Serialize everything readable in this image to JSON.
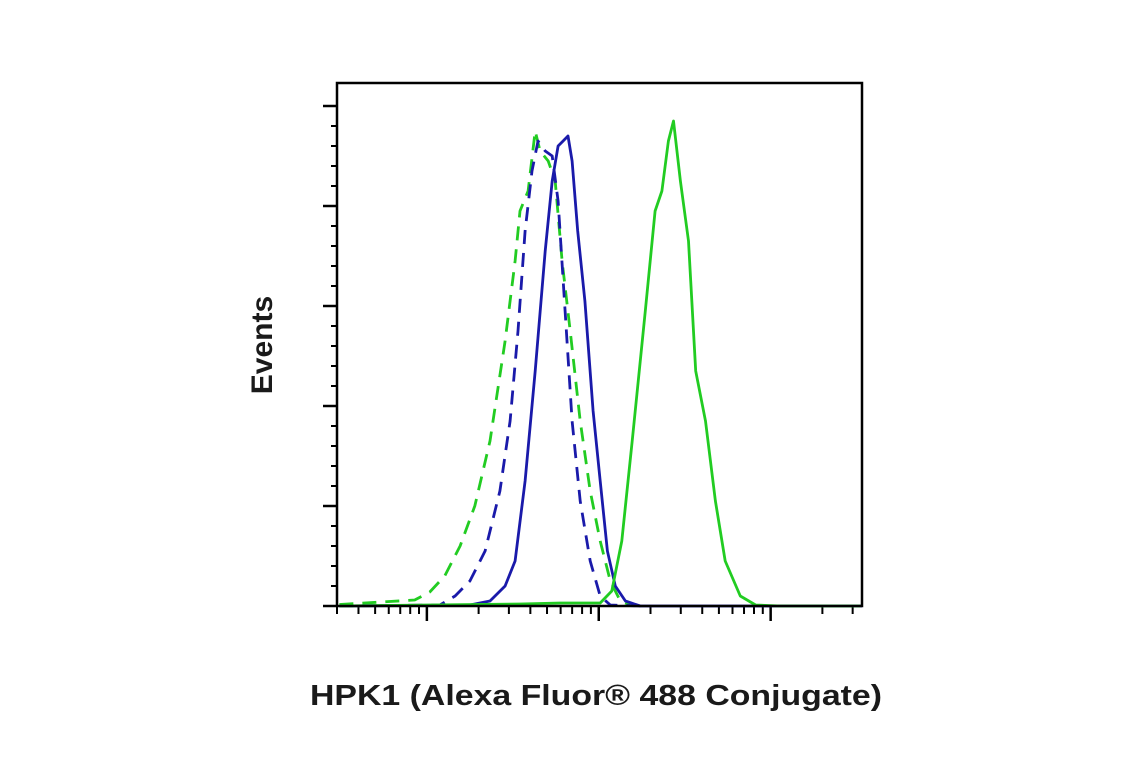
{
  "chart_data": {
    "type": "line",
    "x_label": "HPK1 (Alexa Fluor® 488 Conjugate)",
    "y_label": "Events",
    "xscale": "log",
    "xlim": [
      30,
      34000
    ],
    "xticks": [
      100,
      1000,
      10000
    ],
    "xminorticks": [
      30,
      40,
      50,
      60,
      70,
      80,
      90,
      200,
      300,
      400,
      500,
      600,
      700,
      800,
      900,
      2000,
      3000,
      4000,
      5000,
      6000,
      7000,
      8000,
      9000,
      20000,
      30000
    ],
    "ylim": [
      0,
      104.6
    ],
    "yticks": [
      0,
      20,
      40,
      60,
      80,
      100
    ],
    "yminorticks": [
      4,
      8,
      12,
      16,
      24,
      28,
      32,
      36,
      44,
      48,
      52,
      56,
      64,
      68,
      72,
      76,
      84,
      88,
      92,
      96
    ],
    "series": [
      {
        "color": "#22cc22",
        "dashed": true,
        "x": [
          31,
          85,
          104,
          127,
          156,
          190,
          233,
          285,
          326,
          348,
          388,
          427,
          456,
          508,
          558,
          612,
          682,
          780,
          892,
          1020,
          1167,
          1334,
          1527
        ],
        "values": [
          0.3,
          1.2,
          2.8,
          6,
          12,
          20,
          33,
          53,
          69,
          79,
          83,
          95,
          91,
          89,
          85,
          69,
          55,
          37,
          23,
          13,
          5,
          1,
          0.2
        ]
      },
      {
        "color": "#1a1aaa",
        "dashed": true,
        "x": [
          31,
          119,
          146,
          178,
          218,
          266,
          305,
          339,
          373,
          409,
          443,
          488,
          536,
          580,
          637,
          700,
          780,
          892,
          1020,
          1167,
          1800
        ],
        "values": [
          0,
          0.2,
          2,
          5,
          11,
          23,
          37,
          55,
          75,
          87,
          93,
          91,
          90,
          81,
          59,
          37,
          21,
          9,
          2,
          0.2,
          0
        ]
      },
      {
        "color": "#1a1aaa",
        "dashed": false,
        "x": [
          31,
          178,
          233,
          285,
          326,
          373,
          427,
          488,
          536,
          580,
          620,
          662,
          700,
          754,
          831,
          927,
          1020,
          1122,
          1248,
          1429,
          1745,
          34000
        ],
        "values": [
          0,
          0.2,
          1,
          4,
          9,
          25,
          47,
          71,
          85,
          92,
          93,
          94,
          89,
          75,
          61,
          39,
          25,
          11,
          4,
          1,
          0,
          0
        ]
      },
      {
        "color": "#22cc22",
        "dashed": false,
        "x": [
          31,
          348,
          596,
          1020,
          1191,
          1362,
          1565,
          1866,
          2128,
          2331,
          2543,
          2722,
          2987,
          3328,
          3665,
          4177,
          4770,
          5440,
          6660,
          8170,
          11350,
          33300
        ],
        "values": [
          0,
          0.4,
          0.6,
          0.6,
          3,
          13,
          33,
          59,
          79,
          83,
          93,
          97,
          85,
          73,
          47,
          37,
          21,
          9,
          2,
          0.2,
          0,
          0
        ]
      }
    ]
  }
}
